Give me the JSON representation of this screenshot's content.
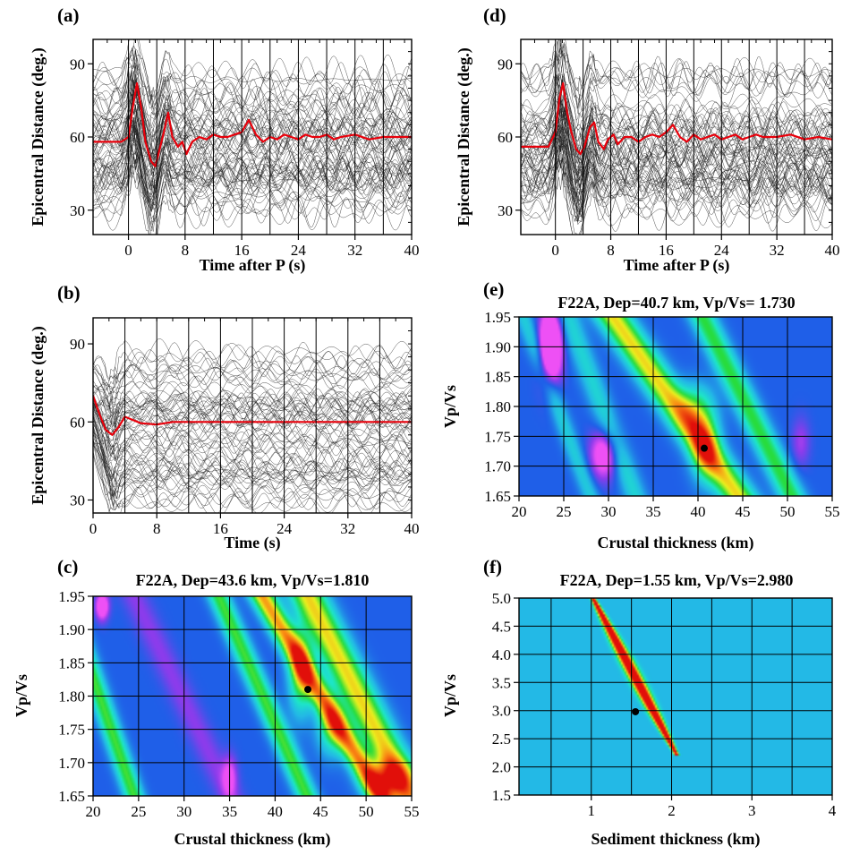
{
  "panels": [
    {
      "id": "a",
      "label": "(a)",
      "type": "traces",
      "title": "",
      "xlabel": "Time after P (s)",
      "ylabel": "Epicentral Distance (deg.)",
      "xlim": [
        -5,
        40
      ],
      "ylim": [
        20,
        100
      ],
      "xticks": [
        0,
        8,
        16,
        24,
        32,
        40
      ],
      "yticks": [
        30,
        60,
        90
      ],
      "grid_x": [
        0,
        4,
        8,
        12,
        16,
        20,
        24,
        28,
        32,
        36,
        40
      ],
      "trace_color": "#1a1a1a",
      "stack_color": "#e8000b",
      "stack": [
        [
          -5,
          58
        ],
        [
          -1,
          58
        ],
        [
          0,
          60
        ],
        [
          0.6,
          72
        ],
        [
          1.2,
          82
        ],
        [
          1.8,
          72
        ],
        [
          2.4,
          58
        ],
        [
          3.2,
          50
        ],
        [
          3.8,
          48
        ],
        [
          4.4,
          55
        ],
        [
          5,
          62
        ],
        [
          5.6,
          70
        ],
        [
          6.2,
          60
        ],
        [
          7,
          56
        ],
        [
          7.6,
          58
        ],
        [
          8.2,
          53
        ],
        [
          9,
          58
        ],
        [
          10,
          60
        ],
        [
          11,
          59
        ],
        [
          12,
          61
        ],
        [
          13,
          60
        ],
        [
          14,
          60
        ],
        [
          15,
          61
        ],
        [
          16,
          62
        ],
        [
          17,
          67
        ],
        [
          18,
          61
        ],
        [
          19,
          58
        ],
        [
          20,
          60
        ],
        [
          21,
          59
        ],
        [
          22,
          61
        ],
        [
          23,
          60
        ],
        [
          24,
          59
        ],
        [
          25,
          61
        ],
        [
          26,
          60
        ],
        [
          27,
          60
        ],
        [
          28,
          61
        ],
        [
          29,
          59
        ],
        [
          30,
          60
        ],
        [
          32,
          61
        ],
        [
          34,
          59
        ],
        [
          36,
          60
        ],
        [
          38,
          60
        ],
        [
          40,
          60
        ]
      ]
    },
    {
      "id": "b",
      "label": "(b)",
      "type": "traces",
      "title": "",
      "xlabel": "Time (s)",
      "ylabel": "Epicentral Distance (deg.)",
      "xlim": [
        0,
        40
      ],
      "ylim": [
        25,
        100
      ],
      "xticks": [
        0,
        8,
        16,
        24,
        32,
        40
      ],
      "yticks": [
        30,
        60,
        90
      ],
      "grid_x": [
        4,
        8,
        12,
        16,
        20,
        24,
        28,
        32,
        36
      ],
      "trace_color": "#1a1a1a",
      "stack_color": "#e8000b",
      "stack": [
        [
          0,
          70
        ],
        [
          0.8,
          63
        ],
        [
          1.6,
          57
        ],
        [
          2.4,
          55
        ],
        [
          3.2,
          58
        ],
        [
          4,
          62
        ],
        [
          4.8,
          61
        ],
        [
          6,
          59.5
        ],
        [
          8,
          59
        ],
        [
          10,
          60
        ],
        [
          12,
          60
        ],
        [
          16,
          60
        ],
        [
          20,
          60
        ],
        [
          24,
          60
        ],
        [
          28,
          60
        ],
        [
          32,
          60
        ],
        [
          36,
          60
        ],
        [
          40,
          60
        ]
      ]
    },
    {
      "id": "d",
      "label": "(d)",
      "type": "traces",
      "title": "",
      "xlabel": "Time after P (s)",
      "ylabel": "Epicentral Distance (deg.)",
      "xlim": [
        -5,
        40
      ],
      "ylim": [
        20,
        100
      ],
      "xticks": [
        0,
        8,
        16,
        24,
        32,
        40
      ],
      "yticks": [
        30,
        60,
        90
      ],
      "grid_x": [
        0,
        4,
        8,
        12,
        16,
        20,
        24,
        28,
        32,
        36,
        40
      ],
      "trace_color": "#1a1a1a",
      "stack_color": "#e8000b",
      "stack": [
        [
          -5,
          56
        ],
        [
          -1,
          56
        ],
        [
          0,
          62
        ],
        [
          0.6,
          76
        ],
        [
          1.1,
          82
        ],
        [
          1.7,
          70
        ],
        [
          2.3,
          62
        ],
        [
          3,
          55
        ],
        [
          3.6,
          53
        ],
        [
          4.2,
          56
        ],
        [
          5,
          64
        ],
        [
          5.6,
          66
        ],
        [
          6.2,
          58
        ],
        [
          7,
          55
        ],
        [
          7.6,
          59
        ],
        [
          8.4,
          61
        ],
        [
          9,
          57
        ],
        [
          10,
          60
        ],
        [
          11,
          60
        ],
        [
          12,
          58
        ],
        [
          13,
          60
        ],
        [
          14,
          61
        ],
        [
          15,
          60
        ],
        [
          16,
          62
        ],
        [
          17,
          65
        ],
        [
          18,
          60
        ],
        [
          19,
          58
        ],
        [
          20,
          61
        ],
        [
          21,
          59
        ],
        [
          22,
          60
        ],
        [
          23,
          61
        ],
        [
          24,
          59
        ],
        [
          25,
          60
        ],
        [
          26,
          61
        ],
        [
          27,
          59
        ],
        [
          28,
          60
        ],
        [
          29,
          61
        ],
        [
          30,
          60
        ],
        [
          32,
          60
        ],
        [
          34,
          61
        ],
        [
          36,
          59
        ],
        [
          38,
          60
        ],
        [
          40,
          59
        ]
      ]
    },
    {
      "id": "c",
      "label": "(c)",
      "type": "heatmap",
      "title": "F22A, Dep=43.6 km, Vp/Vs=1.810",
      "xlabel": "Crustal thickness (km)",
      "ylabel": "Vp/Vs",
      "xlim": [
        20,
        55
      ],
      "ylim": [
        1.65,
        1.95
      ],
      "xticks": [
        20,
        25,
        30,
        35,
        40,
        45,
        50,
        55
      ],
      "yticks": [
        1.65,
        1.7,
        1.75,
        1.8,
        1.85,
        1.9,
        1.95
      ],
      "best": {
        "x": 43.6,
        "y": 1.81
      },
      "background": "#1f5fe8",
      "blobs": [
        {
          "type": "band",
          "x0": 38.6,
          "y0": 1.95,
          "x1": 51.5,
          "y1": 1.65,
          "sigma": 1.4,
          "w": 0.62
        },
        {
          "type": "band",
          "x0": 43.6,
          "y0": 1.95,
          "x1": 54.8,
          "y1": 1.65,
          "sigma": 2.0,
          "w": 0.55
        },
        {
          "type": "band",
          "x0": 33.8,
          "y0": 1.95,
          "x1": 43.5,
          "y1": 1.65,
          "sigma": 1.2,
          "w": 0.4
        },
        {
          "type": "band",
          "x0": 20.2,
          "y0": 1.82,
          "x1": 24.5,
          "y1": 1.65,
          "sigma": 1.1,
          "w": 0.4
        },
        {
          "type": "gauss",
          "x": 42.8,
          "y": 1.835,
          "sx": 1.3,
          "sy": 0.06,
          "w": 0.42
        },
        {
          "type": "gauss",
          "x": 46.2,
          "y": 1.75,
          "sx": 1.6,
          "sy": 0.04,
          "w": 0.3
        },
        {
          "type": "gauss",
          "x": 52.5,
          "y": 1.675,
          "sx": 2.5,
          "sy": 0.03,
          "w": 0.45
        },
        {
          "type": "gauss",
          "x": 21.0,
          "y": 1.935,
          "sx": 0.7,
          "sy": 0.02,
          "w": -0.35
        },
        {
          "type": "band",
          "x0": 24.5,
          "y0": 1.95,
          "x1": 35.0,
          "y1": 1.65,
          "sigma": 1.5,
          "w": -0.1
        },
        {
          "type": "gauss",
          "x": 35.0,
          "y": 1.68,
          "sx": 0.8,
          "sy": 0.03,
          "w": -0.2
        }
      ]
    },
    {
      "id": "e",
      "label": "(e)",
      "type": "heatmap",
      "title": "F22A, Dep=40.7 km, Vp/Vs= 1.730",
      "xlabel": "Crustal thickness (km)",
      "ylabel": "Vp/Vs",
      "xlim": [
        20,
        55
      ],
      "ylim": [
        1.65,
        1.95
      ],
      "xticks": [
        20,
        25,
        30,
        35,
        40,
        45,
        50,
        55
      ],
      "yticks": [
        1.65,
        1.7,
        1.75,
        1.8,
        1.85,
        1.9,
        1.95
      ],
      "best": {
        "x": 40.7,
        "y": 1.73
      },
      "background": "#1f5fe8",
      "blobs": [
        {
          "type": "band",
          "x0": 30.5,
          "y0": 1.95,
          "x1": 44.5,
          "y1": 1.65,
          "sigma": 2.0,
          "w": 0.55
        },
        {
          "type": "gauss",
          "x": 40.8,
          "y": 1.74,
          "sx": 1.6,
          "sy": 0.06,
          "w": 0.4
        },
        {
          "type": "gauss",
          "x": 39.5,
          "y": 1.8,
          "sx": 2.0,
          "sy": 0.04,
          "w": 0.25
        },
        {
          "type": "band",
          "x0": 40.5,
          "y0": 1.95,
          "x1": 50.5,
          "y1": 1.65,
          "sigma": 1.5,
          "w": 0.38
        },
        {
          "type": "band",
          "x0": 25.5,
          "y0": 1.95,
          "x1": 33.0,
          "y1": 1.65,
          "sigma": 1.3,
          "w": 0.2
        },
        {
          "type": "band",
          "x0": 20.5,
          "y0": 1.95,
          "x1": 28.0,
          "y1": 1.65,
          "sigma": 1.0,
          "w": 0.18
        },
        {
          "type": "gauss",
          "x": 23.5,
          "y": 1.9,
          "sx": 1.2,
          "sy": 0.06,
          "w": -0.55
        },
        {
          "type": "gauss",
          "x": 29.5,
          "y": 1.72,
          "sx": 1.5,
          "sy": 0.04,
          "w": -0.3
        },
        {
          "type": "gauss",
          "x": 51.5,
          "y": 1.74,
          "sx": 1.0,
          "sy": 0.04,
          "w": -0.12
        }
      ]
    },
    {
      "id": "f",
      "label": "(f)",
      "type": "heatmap",
      "title": "F22A, Dep=1.55 km, Vp/Vs=2.980",
      "xlabel": "Sediment thickness (km)",
      "ylabel": "Vp/Vs",
      "xlim": [
        0.1,
        4
      ],
      "ylim": [
        1.5,
        5.0
      ],
      "xticks": [
        1,
        2,
        3,
        4
      ],
      "yticks": [
        1.5,
        2.0,
        2.5,
        3.0,
        3.5,
        4.0,
        4.5,
        5.0
      ],
      "best": {
        "x": 1.55,
        "y": 2.98
      },
      "background": "#23b9e6",
      "blobs": [
        {
          "type": "band",
          "x0": 1.02,
          "y0": 5.0,
          "x1": 2.05,
          "y1": 2.25,
          "sigma": 0.06,
          "w": 0.9,
          "taper": true
        }
      ]
    }
  ]
}
